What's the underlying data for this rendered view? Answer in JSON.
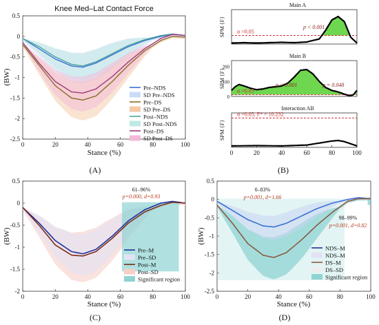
{
  "panels": {
    "A": {
      "title": "Knee Med–Lat Contact Force",
      "label": "(A)"
    },
    "B": {
      "label": "(B)"
    },
    "C": {
      "label": "(C)"
    },
    "D": {
      "label": "(D)"
    }
  },
  "colors": {
    "pre_nds": "#3a6fd6",
    "pre_nds_sd": "#c9dcf6",
    "pre_ds": "#8a6a2a",
    "pre_ds_sd": "#f3c9a6",
    "post_nds": "#4aa39a",
    "post_nds_sd": "#bfe9e3",
    "post_ds": "#a03a78",
    "post_ds_sd": "#f2b9d7",
    "spm_fill": "#5fd23c",
    "alpha_line": "#cc2b2b",
    "sig_region": "#8fd4d3"
  },
  "chart_data": [
    {
      "id": "A",
      "type": "line",
      "title": "Knee Med–Lat Contact Force",
      "xlabel": "Stance (%)",
      "ylabel": "(BW)",
      "xlim": [
        0,
        100
      ],
      "ylim": [
        -2.5,
        0.5
      ],
      "xticks": [
        "0",
        "20",
        "40",
        "60",
        "80",
        "100"
      ],
      "yticks": [
        "0.5",
        "0",
        "-0.5",
        "-1",
        "-1.5",
        "-2",
        "-2.5"
      ],
      "legend": [
        "Pre–NDS",
        "SD Pre–NDS",
        "Pre–DS",
        "SD Pre–DS",
        "Post–NDS",
        "SD Post–NDS",
        "Post–DS",
        "SD Post–DS"
      ],
      "legend_position": "bottom-right",
      "series": [
        {
          "name": "Pre–NDS",
          "x": [
            0,
            10,
            20,
            30,
            37,
            45,
            55,
            65,
            75,
            85,
            92,
            100
          ],
          "y": [
            -0.05,
            -0.3,
            -0.55,
            -0.72,
            -0.75,
            -0.65,
            -0.45,
            -0.25,
            -0.1,
            0.0,
            0.05,
            0.02
          ],
          "sd": 0.35
        },
        {
          "name": "Pre–DS",
          "x": [
            0,
            10,
            20,
            30,
            37,
            45,
            55,
            65,
            75,
            85,
            92,
            100
          ],
          "y": [
            -0.2,
            -0.7,
            -1.2,
            -1.5,
            -1.55,
            -1.45,
            -1.1,
            -0.7,
            -0.35,
            -0.1,
            0.0,
            -0.02
          ],
          "sd": 0.45
        },
        {
          "name": "Post–NDS",
          "x": [
            0,
            10,
            20,
            30,
            37,
            45,
            55,
            65,
            75,
            85,
            92,
            100
          ],
          "y": [
            -0.05,
            -0.25,
            -0.5,
            -0.68,
            -0.72,
            -0.62,
            -0.42,
            -0.22,
            -0.08,
            0.02,
            0.06,
            0.02
          ],
          "sd": 0.3
        },
        {
          "name": "Post–DS",
          "x": [
            0,
            10,
            20,
            30,
            37,
            45,
            55,
            65,
            75,
            85,
            92,
            100
          ],
          "y": [
            -0.15,
            -0.65,
            -1.1,
            -1.35,
            -1.38,
            -1.28,
            -0.98,
            -0.62,
            -0.3,
            -0.05,
            0.05,
            0.02
          ],
          "sd": 0.4
        }
      ]
    },
    {
      "id": "B",
      "type": "area",
      "subplots": [
        {
          "title": "Main A",
          "ylabel": "SPM {F}",
          "xlim": [
            0,
            100
          ],
          "threshold_label": "α =0.05",
          "annotation": "p < 0.001",
          "x": [
            0,
            10,
            20,
            30,
            40,
            50,
            60,
            70,
            75,
            80,
            85,
            90,
            95,
            100
          ],
          "y": [
            0.3,
            0.4,
            0.3,
            0.4,
            0.5,
            0.4,
            0.6,
            1.5,
            4,
            7,
            8,
            6.5,
            2,
            0.3
          ],
          "threshold": 2.5,
          "ymax": 10,
          "threshold_line": "flat"
        },
        {
          "title": "Main B",
          "ylabel": "SPM {F}",
          "xlim": [
            0,
            100
          ],
          "yticks": [
            "200",
            "100",
            "0"
          ],
          "threshold_label": "α =0.05",
          "annotations": [
            "p < 0.001",
            "p = 0.048"
          ],
          "x": [
            0,
            3,
            6,
            10,
            15,
            20,
            25,
            30,
            35,
            40,
            45,
            50,
            55,
            60,
            65,
            70,
            75,
            80,
            85,
            90,
            94,
            97,
            100
          ],
          "y": [
            40,
            65,
            80,
            70,
            55,
            45,
            50,
            60,
            65,
            70,
            90,
            130,
            175,
            180,
            150,
            100,
            60,
            40,
            30,
            15,
            5,
            10,
            40
          ],
          "threshold": 12,
          "ymax": 240
        },
        {
          "title": "Interaction AB",
          "ylabel": "SPM {F}",
          "xlim": [
            0,
            100
          ],
          "xticks": [
            "0",
            "20",
            "40",
            "60",
            "80",
            "100"
          ],
          "threshold_label": "α =0.05,   F* = 10.232",
          "x": [
            0,
            20,
            40,
            60,
            70,
            80,
            85,
            90,
            100
          ],
          "y": [
            0.5,
            0.6,
            0.5,
            0.8,
            1.5,
            2.2,
            2.4,
            2.0,
            0.5
          ],
          "threshold": 10.232,
          "ymax": 12
        }
      ]
    },
    {
      "id": "C",
      "type": "line",
      "xlabel": "Stance (%)",
      "ylabel": "(BW)",
      "xlim": [
        0,
        100
      ],
      "ylim": [
        -2,
        0.5
      ],
      "xticks": [
        "0",
        "20",
        "40",
        "60",
        "80",
        "100"
      ],
      "yticks": [
        "0.5",
        "0",
        "-0.5",
        "-1",
        "-1.5",
        "-2"
      ],
      "legend": [
        "Pre–M",
        "Pre–SD",
        "Post–M",
        "Post–SD",
        "Significant region"
      ],
      "legend_position": "bottom-right",
      "annotation": {
        "range": "61–96%",
        "stats": "p=0.000, d=0.93"
      },
      "significant_region": [
        61,
        96
      ],
      "series": [
        {
          "name": "Pre–M",
          "x": [
            0,
            10,
            20,
            30,
            37,
            45,
            55,
            65,
            75,
            85,
            92,
            100
          ],
          "y": [
            -0.1,
            -0.45,
            -0.85,
            -1.1,
            -1.15,
            -1.05,
            -0.75,
            -0.4,
            -0.15,
            0.0,
            0.04,
            0.0
          ],
          "sd": 0.45
        },
        {
          "name": "Post–M",
          "x": [
            0,
            10,
            20,
            30,
            37,
            45,
            55,
            65,
            75,
            85,
            92,
            100
          ],
          "y": [
            -0.1,
            -0.5,
            -0.95,
            -1.18,
            -1.2,
            -1.1,
            -0.8,
            -0.45,
            -0.2,
            -0.05,
            0.02,
            0.0
          ],
          "sd": 0.55
        }
      ]
    },
    {
      "id": "D",
      "type": "line",
      "xlabel": "Stance (%)",
      "ylabel": "(BW)",
      "xlim": [
        0,
        100
      ],
      "ylim": [
        -2.5,
        0.5
      ],
      "xticks": [
        "0",
        "20",
        "40",
        "60",
        "80",
        "100"
      ],
      "yticks": [
        "0.5",
        "0",
        "-0.5",
        "-1",
        "-1.5",
        "-2",
        "-2.5"
      ],
      "legend": [
        "NDS–M",
        "NDS–M",
        "DS–M",
        "DS–SD",
        "Significant region"
      ],
      "legend_position": "bottom-right",
      "annotations": [
        {
          "range": "0–83%",
          "stats": "p=0.001, d=1.66"
        },
        {
          "range": "98–99%",
          "stats": "p=0.001, d=0.82"
        }
      ],
      "significant_regions": [
        [
          0,
          83
        ],
        [
          98,
          99
        ]
      ],
      "series": [
        {
          "name": "NDS–M",
          "x": [
            0,
            10,
            20,
            30,
            37,
            45,
            55,
            65,
            75,
            85,
            92,
            100
          ],
          "y": [
            -0.05,
            -0.3,
            -0.55,
            -0.72,
            -0.75,
            -0.65,
            -0.45,
            -0.25,
            -0.1,
            0.0,
            0.05,
            0.02
          ],
          "sd": 0.3
        },
        {
          "name": "DS–M",
          "x": [
            0,
            10,
            20,
            30,
            37,
            45,
            55,
            65,
            75,
            85,
            92,
            100
          ],
          "y": [
            -0.15,
            -0.65,
            -1.2,
            -1.52,
            -1.58,
            -1.45,
            -1.1,
            -0.7,
            -0.35,
            -0.05,
            0.02,
            0.02
          ],
          "sd": 0.55
        }
      ]
    }
  ]
}
